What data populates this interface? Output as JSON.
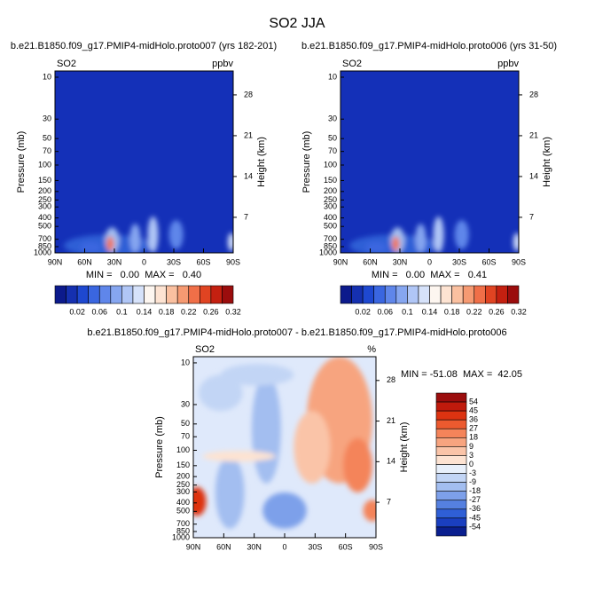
{
  "title": "SO2 JJA",
  "chart_data": [
    {
      "type": "contour",
      "title": "b.e21.B1850.f09_g17.PMIP4-midHolo.proto007 (yrs 182-201)",
      "left_label": "SO2",
      "right_label": "ppbv",
      "ylabel": "Pressure (mb)",
      "y2label": "Height (km)",
      "stats": "MIN =   0.00  MAX =   0.40",
      "xlim": [
        90,
        -90
      ],
      "xticks": [
        {
          "value": 90,
          "label": "90N"
        },
        {
          "value": 60,
          "label": "60N"
        },
        {
          "value": 30,
          "label": "30N"
        },
        0,
        {
          "value": -30,
          "label": "30S"
        },
        {
          "value": -60,
          "label": "60S"
        },
        {
          "value": -90,
          "label": "90S"
        }
      ],
      "ylim": [
        1000,
        8.5
      ],
      "log_y": true,
      "yticks": [
        10,
        30,
        50,
        70,
        100,
        150,
        200,
        250,
        300,
        400,
        500,
        700,
        850,
        1000
      ],
      "y2lim": [
        0.9,
        32.1
      ],
      "y2ticks": [
        7,
        14,
        21,
        28
      ],
      "colorbar": {
        "orientation": "horizontal",
        "levels": [
          0.02,
          0.06,
          0.1,
          0.14,
          0.18,
          0.22,
          0.26,
          0.32
        ],
        "colors": [
          "#0c1a8c",
          "#1530b0",
          "#1e48d0",
          "#3a66e0",
          "#5f86ea",
          "#86a6f0",
          "#b0c6f6",
          "#d6e2fa",
          "#fdf6f0",
          "#fde3d2",
          "#fac0a0",
          "#f69a72",
          "#f06f48",
          "#e04422",
          "#c42010",
          "#9b0d0d"
        ]
      }
    },
    {
      "type": "contour",
      "title": "b.e21.B1850.f09_g17.PMIP4-midHolo.proto006 (yrs 31-50)",
      "left_label": "SO2",
      "right_label": "ppbv",
      "ylabel": "Pressure (mb)",
      "y2label": "Height (km)",
      "stats": "MIN =   0.00  MAX =   0.41",
      "xlim": [
        90,
        -90
      ],
      "xticks": [
        {
          "value": 90,
          "label": "90N"
        },
        {
          "value": 60,
          "label": "60N"
        },
        {
          "value": 30,
          "label": "30N"
        },
        0,
        {
          "value": -30,
          "label": "30S"
        },
        {
          "value": -60,
          "label": "60S"
        },
        {
          "value": -90,
          "label": "90S"
        }
      ],
      "ylim": [
        1000,
        8.5
      ],
      "log_y": true,
      "yticks": [
        10,
        30,
        50,
        70,
        100,
        150,
        200,
        250,
        300,
        400,
        500,
        700,
        850,
        1000
      ],
      "y2lim": [
        0.9,
        32.1
      ],
      "y2ticks": [
        7,
        14,
        21,
        28
      ],
      "colorbar": {
        "orientation": "horizontal",
        "levels": [
          0.02,
          0.06,
          0.1,
          0.14,
          0.18,
          0.22,
          0.26,
          0.32
        ],
        "colors": [
          "#0c1a8c",
          "#1530b0",
          "#1e48d0",
          "#3a66e0",
          "#5f86ea",
          "#86a6f0",
          "#b0c6f6",
          "#d6e2fa",
          "#fdf6f0",
          "#fde3d2",
          "#fac0a0",
          "#f69a72",
          "#f06f48",
          "#e04422",
          "#c42010",
          "#9b0d0d"
        ]
      }
    },
    {
      "type": "contour",
      "title": "b.e21.B1850.f09_g17.PMIP4-midHolo.proto007 - b.e21.B1850.f09_g17.PMIP4-midHolo.proto006",
      "left_label": "SO2",
      "right_label": "%",
      "ylabel": "Pressure (mb)",
      "y2label": "Height (km)",
      "stats": "MIN = -51.08  MAX =  42.05",
      "xlim": [
        90,
        -90
      ],
      "xticks": [
        {
          "value": 90,
          "label": "90N"
        },
        {
          "value": 60,
          "label": "60N"
        },
        {
          "value": 30,
          "label": "30N"
        },
        0,
        {
          "value": -30,
          "label": "30S"
        },
        {
          "value": -60,
          "label": "60S"
        },
        {
          "value": -90,
          "label": "90S"
        }
      ],
      "ylim": [
        1000,
        8.5
      ],
      "log_y": true,
      "yticks": [
        10,
        30,
        50,
        70,
        100,
        150,
        200,
        250,
        300,
        400,
        500,
        700,
        850,
        1000
      ],
      "y2lim": [
        0.9,
        32.1
      ],
      "y2ticks": [
        7,
        14,
        21,
        28
      ],
      "colorbar": {
        "orientation": "vertical",
        "levels": [
          54,
          45,
          36,
          27,
          18,
          9,
          3,
          0,
          -3,
          -9,
          -18,
          -27,
          -36,
          -45,
          -54
        ],
        "colors": [
          "#9b0d0d",
          "#c01a0c",
          "#dd3311",
          "#ec5a2f",
          "#f4845a",
          "#f7a47f",
          "#fac4a8",
          "#fde3d2",
          "#e8f0fb",
          "#c2d5f5",
          "#a3bef0",
          "#7da0ea",
          "#5580e0",
          "#2f5fd6",
          "#1a3fc0",
          "#0a1f8f"
        ]
      }
    }
  ]
}
